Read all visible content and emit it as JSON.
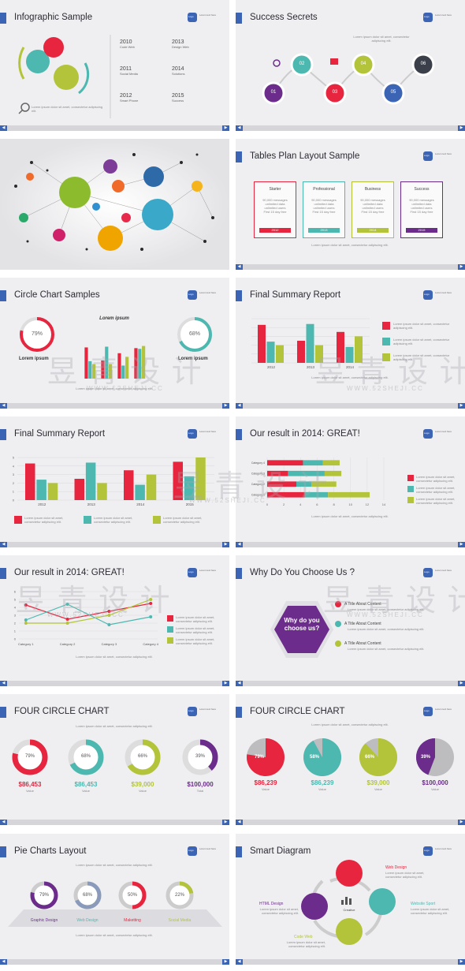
{
  "colors": {
    "red": "#e8253f",
    "teal": "#4cb8b0",
    "green": "#b4c43a",
    "purple": "#6c2c8c",
    "blue": "#3c64b4",
    "gray": "#b5b5b8"
  },
  "logo": {
    "mark": "Logo",
    "text": "Lorem text here"
  },
  "nav": {
    "prev": "◀",
    "next": "▶"
  },
  "lorem_line": "Lorem ipsum dolor sit amet, consectetur adipiscing elit.",
  "s1": {
    "title": "Infographic Sample",
    "timeline": [
      {
        "year": "2010",
        "label": "Code Web"
      },
      {
        "year": "2011",
        "label": "Social Media"
      },
      {
        "year": "2012",
        "label": "Smart Phone"
      },
      {
        "year": "2013",
        "label": "Design Web"
      },
      {
        "year": "2014",
        "label": "Solutions"
      },
      {
        "year": "2015",
        "label": "Success"
      }
    ]
  },
  "s2": {
    "title": "Success Secrets",
    "steps": [
      "01",
      "02",
      "03",
      "04",
      "05",
      "06"
    ]
  },
  "s4": {
    "title": "Tables Plan Layout Sample",
    "plans": [
      {
        "name": "Starter",
        "year": "2012",
        "l1": "90,000 messages",
        "l2": "unlimited data",
        "l3": "unlimited users",
        "l4": "First 15 day free"
      },
      {
        "name": "Professional",
        "year": "2013",
        "l1": "90,000 messages",
        "l2": "unlimited data",
        "l3": "unlimited users",
        "l4": "First 15 day free"
      },
      {
        "name": "Business",
        "year": "2014",
        "l1": "90,000 messages",
        "l2": "unlimited data",
        "l3": "unlimited users",
        "l4": "First 15 day free"
      },
      {
        "name": "Success",
        "year": "2015",
        "l1": "90,000 messages",
        "l2": "unlimited data",
        "l3": "unlimited users",
        "l4": "First 15 day free"
      }
    ]
  },
  "s5": {
    "title": "Circle Chart Samples",
    "left_pct": "79%",
    "right_pct": "68%",
    "heading": "Lorem ipsum",
    "left_label": "Lorem ipsum",
    "right_label": "Lorem ipsum"
  },
  "s6": {
    "title": "Final Summary Report"
  },
  "s7": {
    "title": "Final Summary Report"
  },
  "s8": {
    "title": "Our result in 2014: GREAT!"
  },
  "s9": {
    "title": "Our result in 2014: GREAT!"
  },
  "s10": {
    "title": "Why Do You Choose Us ?",
    "hex_text": "Why do you choose us?",
    "items": [
      {
        "letter": "A",
        "label": "A Title About Content"
      },
      {
        "letter": "B",
        "label": "A Title About Content"
      },
      {
        "letter": "C",
        "label": "A Title About Content"
      }
    ]
  },
  "s11": {
    "title": "FOUR CIRCLE CHART",
    "items": [
      {
        "pct": "79%",
        "value": "$86,453",
        "caption": "Value"
      },
      {
        "pct": "68%",
        "value": "$86,453",
        "caption": "Value"
      },
      {
        "pct": "66%",
        "value": "$39,000",
        "caption": "Value"
      },
      {
        "pct": "39%",
        "value": "$100,000",
        "caption": "Total"
      }
    ]
  },
  "s12": {
    "title": "FOUR CIRCLE CHART",
    "items": [
      {
        "pct": "79%",
        "value": "$86,239",
        "caption": "Value"
      },
      {
        "pct": "58%",
        "value": "$86,239",
        "caption": "Value"
      },
      {
        "pct": "66%",
        "value": "$39,000",
        "caption": "Value"
      },
      {
        "pct": "39%",
        "value": "$100,000",
        "caption": "Value"
      }
    ]
  },
  "s13": {
    "title": "Pie Charts Layout",
    "items": [
      {
        "pct": "79%",
        "label": "Graphic Design"
      },
      {
        "pct": "68%",
        "label": "Web Design"
      },
      {
        "pct": "50%",
        "label": "Maketting"
      },
      {
        "pct": "22%",
        "label": "Social Media"
      }
    ]
  },
  "s14": {
    "title": "Smart Diagram",
    "center": "Creative",
    "labels": {
      "top": "Web Design",
      "right": "Website Sport",
      "bottom": "Code Web",
      "left": "HTML Design"
    }
  },
  "watermark": {
    "main": "昱 青 设 计",
    "sub": "WWW.52SHEJI.CC"
  },
  "chart_data": [
    {
      "type": "bar",
      "categories": [
        "2012",
        "2013",
        "2014",
        "2015"
      ],
      "series": [
        {
          "name": "",
          "values": [
            4.3,
            2.5,
            3.5,
            4.5
          ]
        },
        {
          "name": "",
          "values": [
            2.4,
            4.4,
            1.8,
            2.8
          ]
        },
        {
          "name": "",
          "values": [
            2,
            2,
            3,
            5
          ]
        }
      ],
      "ylim": [
        0,
        5
      ]
    },
    {
      "type": "bar",
      "categories": [
        "2012",
        "2013",
        "2014"
      ],
      "series": [
        {
          "name": "",
          "values": [
            4.3,
            2.5,
            3.5
          ]
        },
        {
          "name": "",
          "values": [
            2.4,
            4.4,
            1.8
          ]
        },
        {
          "name": "",
          "values": [
            2,
            2,
            3
          ]
        }
      ],
      "ylim": [
        0,
        5
      ]
    },
    {
      "type": "bar",
      "categories": [
        "2012",
        "2013",
        "2014",
        "2015"
      ],
      "series": [
        {
          "name": "",
          "values": [
            4.3,
            2.5,
            3.5,
            4.2
          ]
        },
        {
          "name": "",
          "values": [
            2.4,
            4.4,
            1.8,
            4.1
          ]
        },
        {
          "name": "",
          "values": [
            2,
            2,
            3,
            4.5
          ]
        }
      ],
      "ylim": [
        0,
        5
      ]
    },
    {
      "type": "bar",
      "orientation": "horizontal-stacked",
      "categories": [
        "Category 4",
        "Category 3",
        "Category 2",
        "Category 1"
      ],
      "series": [
        {
          "name": "",
          "values": [
            4.3,
            2.5,
            3.5,
            4.5
          ]
        },
        {
          "name": "",
          "values": [
            2.4,
            4.4,
            1.8,
            2.8
          ]
        },
        {
          "name": "",
          "values": [
            2,
            2,
            3,
            5
          ]
        }
      ],
      "xticks": [
        "0",
        "2",
        "4",
        "6",
        "8",
        "10",
        "12",
        "14"
      ],
      "xlim": [
        0,
        14
      ]
    },
    {
      "type": "line",
      "categories": [
        "Category 1",
        "Category 2",
        "Category 3",
        "Category 4"
      ],
      "series": [
        {
          "name": "",
          "values": [
            4.3,
            2.5,
            3.5,
            4.5
          ]
        },
        {
          "name": "",
          "values": [
            2.4,
            4.4,
            1.8,
            2.8
          ]
        },
        {
          "name": "",
          "values": [
            2,
            2,
            3,
            5
          ]
        }
      ],
      "yticks": [
        "0",
        "1",
        "2",
        "3",
        "4",
        "5",
        "6"
      ],
      "ylim": [
        0,
        6
      ]
    }
  ]
}
